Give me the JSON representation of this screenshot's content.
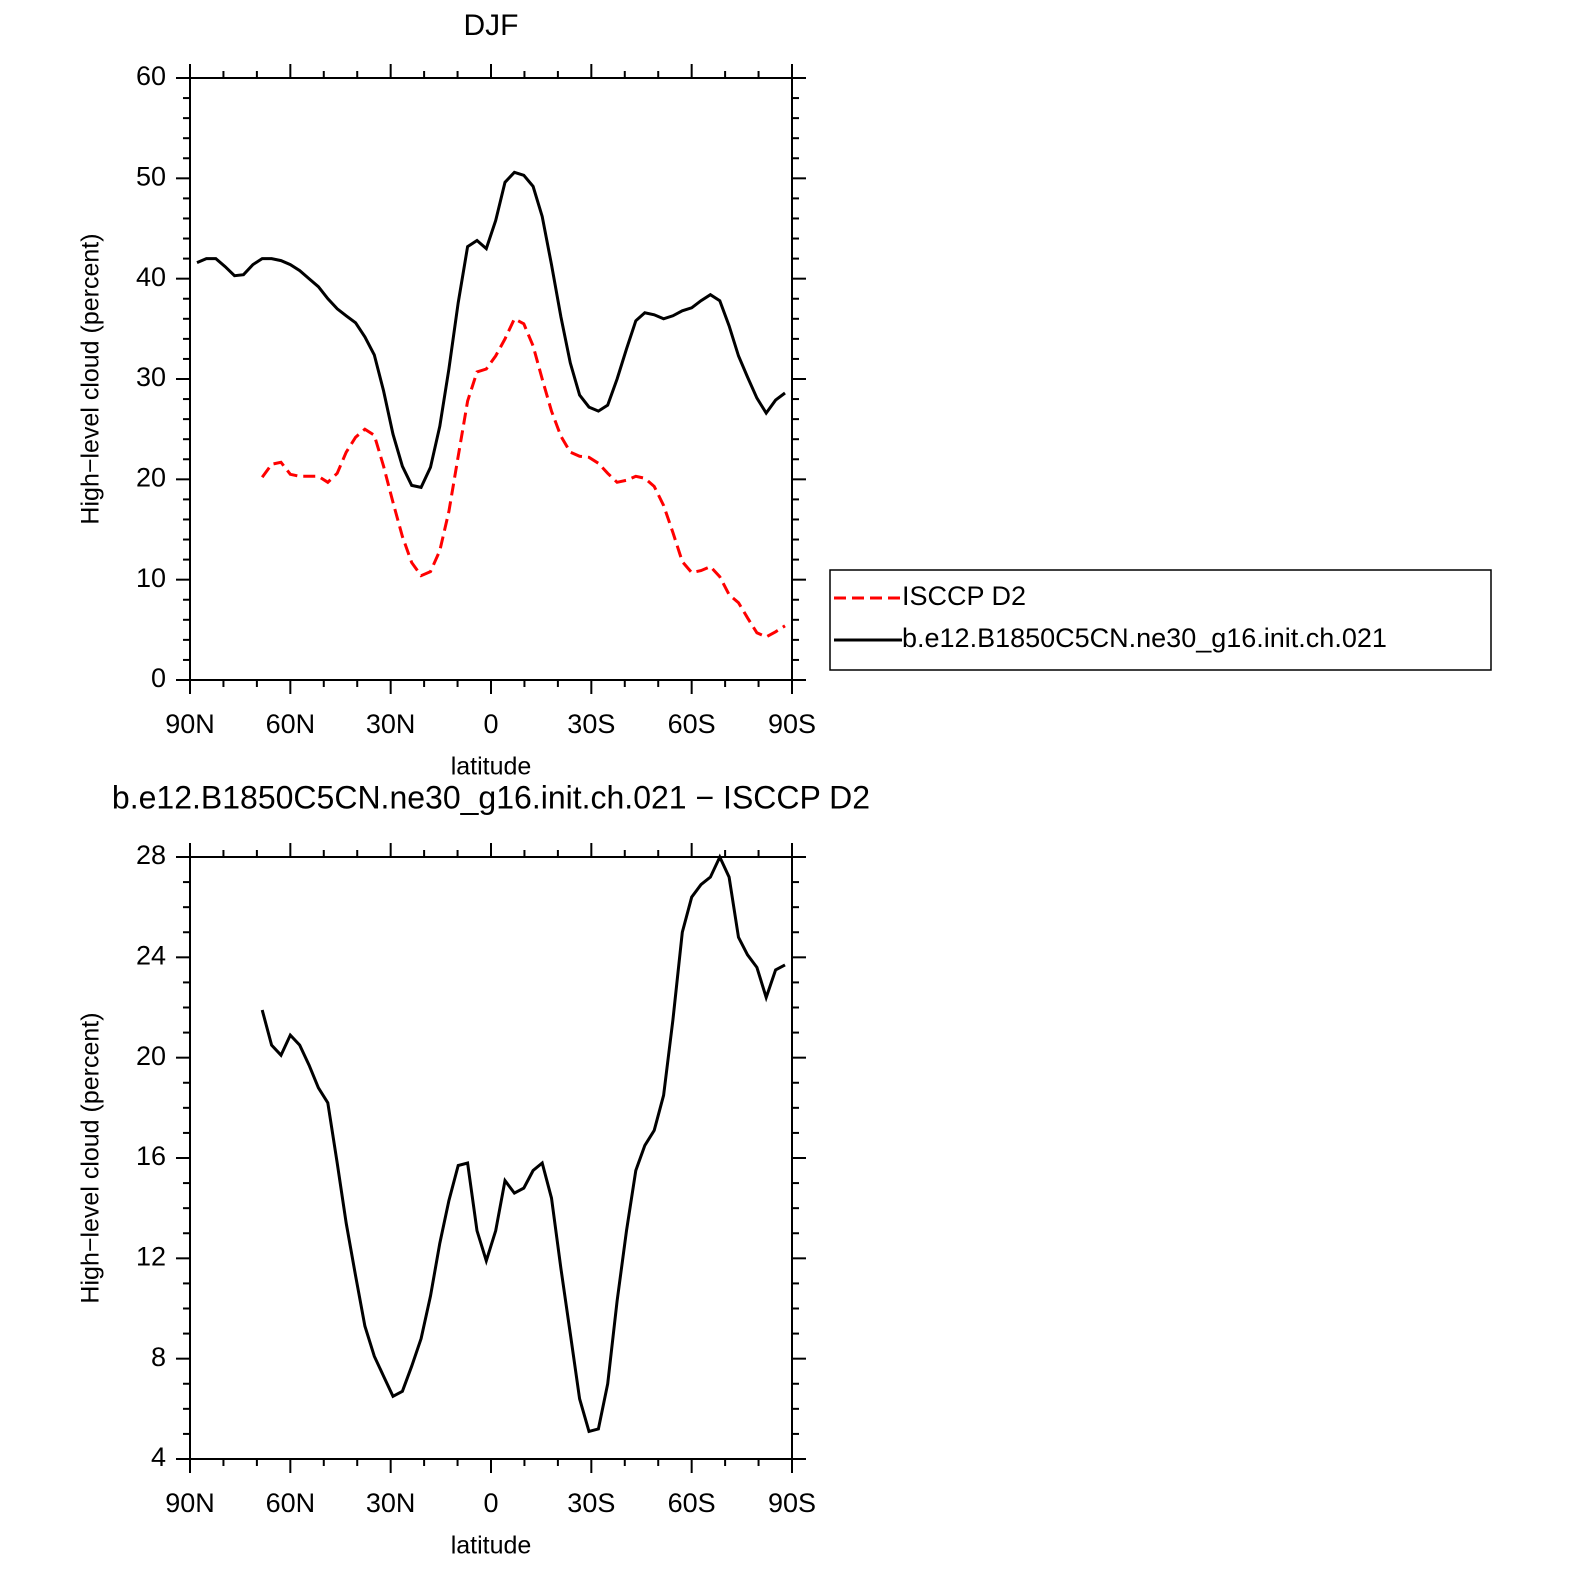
{
  "chart_data": [
    {
      "type": "line",
      "title": "DJF",
      "xlabel": "latitude",
      "ylabel": "High−level cloud (percent)",
      "x": [
        87.9,
        85.1,
        82.3,
        79.5,
        76.7,
        74.0,
        71.2,
        68.4,
        65.6,
        62.8,
        60.0,
        57.2,
        54.4,
        51.6,
        48.8,
        46.0,
        43.3,
        40.5,
        37.7,
        34.9,
        32.1,
        29.3,
        26.5,
        23.7,
        20.9,
        18.1,
        15.3,
        12.6,
        9.8,
        7.0,
        4.2,
        1.4,
        -1.4,
        -4.2,
        -7.0,
        -9.8,
        -12.6,
        -15.3,
        -18.1,
        -20.9,
        -23.7,
        -26.5,
        -29.3,
        -32.1,
        -34.9,
        -37.7,
        -40.5,
        -43.3,
        -46.0,
        -48.8,
        -51.6,
        -54.4,
        -57.2,
        -60.0,
        -62.8,
        -65.6,
        -68.4,
        -71.2,
        -74.0,
        -76.7,
        -79.5,
        -82.3,
        -85.1,
        -87.9
      ],
      "series": [
        {
          "name": "ISCCP D2",
          "color": "#ff0000",
          "style": "dashed",
          "values": [
            null,
            null,
            null,
            null,
            null,
            null,
            null,
            20.2,
            21.5,
            21.7,
            20.5,
            20.3,
            20.3,
            20.3,
            19.7,
            20.6,
            22.7,
            24.2,
            25.0,
            24.4,
            21.3,
            17.7,
            14.3,
            11.7,
            10.4,
            10.8,
            12.9,
            16.8,
            22.3,
            27.8,
            30.7,
            31.0,
            32.3,
            34.0,
            36.0,
            35.5,
            33.3,
            30.0,
            26.8,
            24.3,
            22.7,
            22.3,
            22.2,
            21.6,
            20.6,
            19.7,
            19.9,
            20.3,
            20.1,
            19.3,
            17.4,
            14.7,
            11.8,
            10.7,
            10.9,
            11.3,
            10.3,
            8.5,
            7.7,
            6.2,
            4.7,
            4.3,
            4.8,
            5.4
          ]
        },
        {
          "name": "b.e12.B1850C5CN.ne30_g16.init.ch.021",
          "color": "#000000",
          "style": "solid",
          "values": [
            41.6,
            42.0,
            42.0,
            41.2,
            40.3,
            40.4,
            41.4,
            42.0,
            42.0,
            41.8,
            41.4,
            40.8,
            40.0,
            39.2,
            38.0,
            37.0,
            36.3,
            35.6,
            34.2,
            32.4,
            28.8,
            24.5,
            21.3,
            19.4,
            19.2,
            21.2,
            25.3,
            31.0,
            37.6,
            43.2,
            43.8,
            43.0,
            45.8,
            49.6,
            50.6,
            50.3,
            49.2,
            46.2,
            41.4,
            36.2,
            31.6,
            28.4,
            27.2,
            26.8,
            27.4,
            30.0,
            33.0,
            35.8,
            36.6,
            36.4,
            36.0,
            36.3,
            36.8,
            37.1,
            37.8,
            38.4,
            37.8,
            35.3,
            32.3,
            30.2,
            28.1,
            26.6,
            27.9,
            28.6
          ]
        }
      ],
      "xlim": [
        90,
        -90
      ],
      "xticks": [
        {
          "value": 90,
          "label": "90N"
        },
        {
          "value": 60,
          "label": "60N"
        },
        {
          "value": 30,
          "label": "30N"
        },
        0,
        {
          "value": -30,
          "label": "30S"
        },
        {
          "value": -60,
          "label": "60S"
        },
        {
          "value": -90,
          "label": "90S"
        }
      ],
      "xminorticks": [
        80,
        70,
        50,
        40,
        20,
        10,
        -10,
        -20,
        -40,
        -50,
        -70,
        -80
      ],
      "ylim": [
        0,
        60
      ],
      "yticks": [
        0,
        10,
        20,
        30,
        40,
        50,
        60
      ],
      "yminorticks": [
        2,
        4,
        6,
        8,
        12,
        14,
        16,
        18,
        22,
        24,
        26,
        28,
        32,
        34,
        36,
        38,
        42,
        44,
        46,
        48,
        52,
        54,
        56,
        58
      ],
      "legend": "right"
    },
    {
      "type": "line",
      "title": "b.e12.B1850C5CN.ne30_g16.init.ch.021 − ISCCP D2",
      "xlabel": "latitude",
      "ylabel": "High−level cloud (percent)",
      "x": [
        87.9,
        85.1,
        82.3,
        79.5,
        76.7,
        74.0,
        71.2,
        68.4,
        65.6,
        62.8,
        60.0,
        57.2,
        54.4,
        51.6,
        48.8,
        46.0,
        43.3,
        40.5,
        37.7,
        34.9,
        32.1,
        29.3,
        26.5,
        23.7,
        20.9,
        18.1,
        15.3,
        12.6,
        9.8,
        7.0,
        4.2,
        1.4,
        -1.4,
        -4.2,
        -7.0,
        -9.8,
        -12.6,
        -15.3,
        -18.1,
        -20.9,
        -23.7,
        -26.5,
        -29.3,
        -32.1,
        -34.9,
        -37.7,
        -40.5,
        -43.3,
        -46.0,
        -48.8,
        -51.6,
        -54.4,
        -57.2,
        -60.0,
        -62.8,
        -65.6,
        -68.4,
        -71.2,
        -74.0,
        -76.7,
        -79.5,
        -82.3,
        -85.1,
        -87.9
      ],
      "series": [
        {
          "color": "#000000",
          "style": "solid",
          "values": [
            null,
            null,
            null,
            null,
            null,
            null,
            null,
            21.9,
            20.5,
            20.1,
            20.9,
            20.5,
            19.7,
            18.8,
            18.2,
            15.8,
            13.4,
            11.3,
            9.3,
            8.1,
            7.3,
            6.5,
            6.7,
            7.7,
            8.8,
            10.5,
            12.6,
            14.3,
            15.7,
            15.8,
            13.1,
            11.9,
            13.1,
            15.1,
            14.6,
            14.8,
            15.5,
            15.8,
            14.4,
            11.6,
            9.0,
            6.4,
            5.1,
            5.2,
            7.0,
            10.3,
            13.1,
            15.5,
            16.5,
            17.1,
            18.5,
            21.5,
            25.0,
            26.4,
            26.9,
            27.2,
            28.0,
            27.2,
            24.8,
            24.1,
            23.6,
            22.4,
            23.5,
            23.7
          ]
        }
      ],
      "xlim": [
        90,
        -90
      ],
      "xticks": [
        {
          "value": 90,
          "label": "90N"
        },
        {
          "value": 60,
          "label": "60N"
        },
        {
          "value": 30,
          "label": "30N"
        },
        0,
        {
          "value": -30,
          "label": "30S"
        },
        {
          "value": -60,
          "label": "60S"
        },
        {
          "value": -90,
          "label": "90S"
        }
      ],
      "xminorticks": [
        80,
        70,
        50,
        40,
        20,
        10,
        -10,
        -20,
        -40,
        -50,
        -70,
        -80
      ],
      "ylim": [
        4,
        28
      ],
      "yticks": [
        4,
        8,
        12,
        16,
        20,
        24,
        28
      ],
      "yminorticks": [
        5,
        6,
        7,
        9,
        10,
        11,
        13,
        14,
        15,
        17,
        18,
        19,
        21,
        22,
        23,
        25,
        26,
        27
      ]
    }
  ]
}
